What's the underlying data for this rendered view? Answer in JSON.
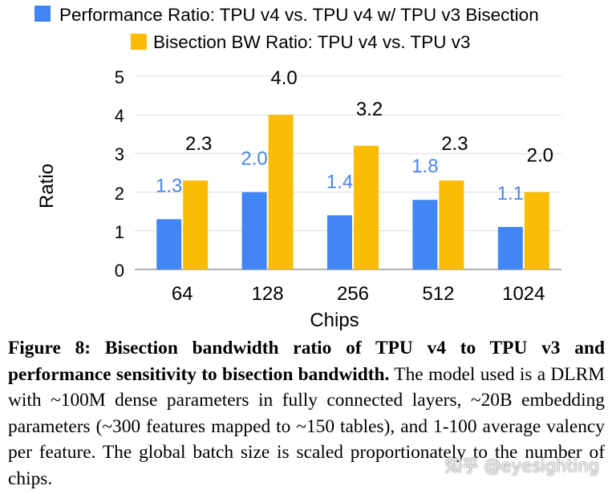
{
  "chart_data": {
    "type": "bar",
    "categories": [
      "64",
      "128",
      "256",
      "512",
      "1024"
    ],
    "series": [
      {
        "name": "Performance Ratio: TPU v4 vs. TPU v4 w/ TPU v3 Bisection",
        "values": [
          1.3,
          2.0,
          1.4,
          1.8,
          1.1
        ],
        "labels": [
          "1.3",
          "2.0",
          "1.4",
          "1.8",
          "1.1"
        ],
        "color": "#4285f4",
        "label_color": "#4a86e8"
      },
      {
        "name": "Bisection BW Ratio: TPU v4 vs. TPU v3",
        "values": [
          2.3,
          4.0,
          3.2,
          2.3,
          2.0
        ],
        "labels": [
          "2.3",
          "4.0",
          "3.2",
          "2.3",
          "2.0"
        ],
        "color": "#fbbc04",
        "label_color": "#000000"
      }
    ],
    "xlabel": "Chips",
    "ylabel": "Ratio",
    "ylim": [
      0,
      5
    ],
    "yticks": [
      "0",
      "1",
      "2",
      "3",
      "4",
      "5"
    ],
    "grid": true,
    "legend": "top"
  },
  "caption": {
    "bold": "Figure 8: Bisection bandwidth ratio of TPU v4 to TPU v3 and performance sensitivity to bisection bandwidth.",
    "text": " The model used is a DLRM with ~100M dense parameters in fully connected layers, ~20B embedding parameters (~300 features mapped to ~150 tables), and 1-100 average valency per feature. The global batch size is scaled proportionately to the number of chips."
  },
  "watermark": "知乎 @eyesighting"
}
